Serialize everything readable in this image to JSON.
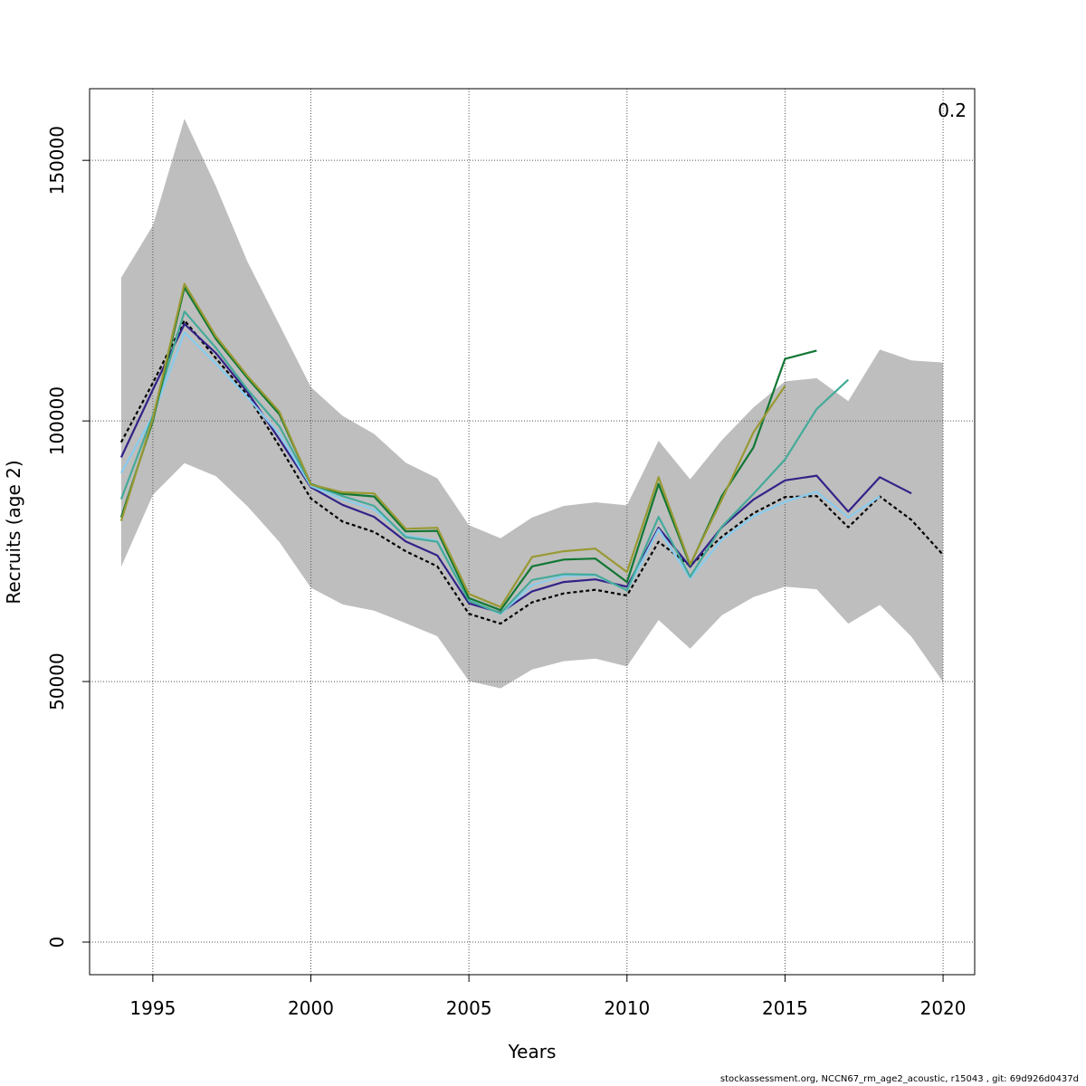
{
  "chart_data": {
    "type": "line",
    "xlabel": "Years",
    "ylabel": "Recruits (age 2)",
    "corner_label": "0.2",
    "xlim": [
      1993,
      2021
    ],
    "ylim": [
      -6250,
      163750
    ],
    "x_ticks": [
      1995,
      2000,
      2005,
      2010,
      2015,
      2020
    ],
    "y_ticks": [
      0,
      50000,
      100000,
      150000
    ],
    "grid": true,
    "band": {
      "color": "#bebebe",
      "x": [
        1994,
        1995,
        1996,
        1997,
        1998,
        1999,
        2000,
        2001,
        2002,
        2003,
        2004,
        2005,
        2006,
        2007,
        2008,
        2009,
        2010,
        2011,
        2012,
        2013,
        2014,
        2015,
        2016,
        2017,
        2018,
        2019,
        2020
      ],
      "upper": [
        127500,
        137500,
        158000,
        145000,
        130500,
        118500,
        106500,
        101000,
        97500,
        92000,
        89000,
        80000,
        77500,
        81500,
        83700,
        84400,
        83800,
        96200,
        88800,
        96300,
        102600,
        107600,
        108200,
        103800,
        113700,
        111600,
        111200
      ],
      "lower": [
        72000,
        85800,
        91900,
        89400,
        83600,
        76800,
        68000,
        64800,
        63600,
        61200,
        58700,
        50100,
        48700,
        52300,
        53900,
        54400,
        52900,
        61800,
        56300,
        62700,
        66200,
        68200,
        67700,
        61100,
        64700,
        58600,
        49900
      ]
    },
    "series": [
      {
        "color": "#000000",
        "dashed": true,
        "x": [
          1994,
          1995,
          1996,
          1997,
          1998,
          1999,
          2000,
          2001,
          2002,
          2003,
          2004,
          2005,
          2006,
          2007,
          2008,
          2009,
          2010,
          2011,
          2012,
          2013,
          2014,
          2015,
          2016,
          2017,
          2018,
          2019,
          2020
        ],
        "values": [
          95900,
          107300,
          119300,
          112000,
          104900,
          95200,
          85100,
          80700,
          78700,
          75000,
          72100,
          63000,
          61100,
          65200,
          66900,
          67600,
          66500,
          76800,
          72200,
          77800,
          82300,
          85400,
          85600,
          79600,
          85500,
          81000,
          74300
        ]
      },
      {
        "color": "#332288",
        "x": [
          1994,
          1995,
          1996,
          1997,
          1998,
          1999,
          2000,
          2001,
          2002,
          2003,
          2004,
          2005,
          2006,
          2007,
          2008,
          2009,
          2010,
          2011,
          2012,
          2013,
          2014,
          2015,
          2016,
          2017,
          2018,
          2019
        ],
        "values": [
          93000,
          106000,
          118600,
          113000,
          105500,
          96500,
          87300,
          83900,
          81600,
          76900,
          74200,
          65000,
          63200,
          67300,
          69100,
          69600,
          68200,
          79500,
          72000,
          79600,
          84900,
          88600,
          89500,
          82600,
          89200,
          86100
        ]
      },
      {
        "color": "#88ccee",
        "x": [
          1994,
          1995,
          1996,
          1997,
          1998,
          1999,
          2000,
          2001,
          2002,
          2003,
          2004,
          2005,
          2006,
          2007,
          2008,
          2009,
          2010,
          2011,
          2012,
          2013,
          2014,
          2015,
          2016,
          2017,
          2018
        ],
        "values": [
          90000,
          101000,
          117000,
          111000,
          104500,
          97500,
          87500,
          85000,
          83000,
          78000,
          77000,
          65600,
          63000,
          68500,
          70300,
          70400,
          67500,
          79200,
          69800,
          77200,
          81700,
          84500,
          86400,
          81500,
          85500
        ]
      },
      {
        "color": "#44aa99",
        "x": [
          1994,
          1995,
          1996,
          1997,
          1998,
          1999,
          2000,
          2001,
          2002,
          2003,
          2004,
          2005,
          2006,
          2007,
          2008,
          2009,
          2010,
          2011,
          2012,
          2013,
          2014,
          2015,
          2016,
          2017
        ],
        "values": [
          85000,
          101000,
          121000,
          114000,
          106000,
          99000,
          87800,
          85600,
          83700,
          77700,
          76800,
          65500,
          63100,
          69500,
          70600,
          70500,
          67500,
          81600,
          70100,
          79700,
          86000,
          92600,
          102300,
          107900
        ]
      },
      {
        "color": "#117733",
        "x": [
          1994,
          1995,
          1996,
          1997,
          1998,
          1999,
          2000,
          2001,
          2002,
          2003,
          2004,
          2005,
          2006,
          2007,
          2008,
          2009,
          2010,
          2011,
          2012,
          2013,
          2014,
          2015,
          2016
        ],
        "values": [
          81500,
          100000,
          125600,
          115700,
          108200,
          101300,
          87900,
          86000,
          85500,
          78800,
          78900,
          66000,
          63700,
          72100,
          73400,
          73600,
          69100,
          87900,
          72300,
          85600,
          94900,
          111900,
          113500
        ]
      },
      {
        "color": "#999933",
        "x": [
          1994,
          1995,
          1996,
          1997,
          1998,
          1999,
          2000,
          2001,
          2002,
          2003,
          2004,
          2005,
          2006,
          2007,
          2008,
          2009,
          2010,
          2011,
          2012,
          2013,
          2014,
          2015
        ],
        "values": [
          80800,
          100500,
          126300,
          116200,
          108600,
          101800,
          87800,
          86300,
          86100,
          79300,
          79500,
          66800,
          64300,
          73900,
          75000,
          75500,
          71000,
          89200,
          72500,
          84900,
          97800,
          106700
        ]
      }
    ]
  },
  "footer_text": "stockassessment.org, NCCN67_rm_age2_acoustic, r15043 , git: 69d926d0437d"
}
